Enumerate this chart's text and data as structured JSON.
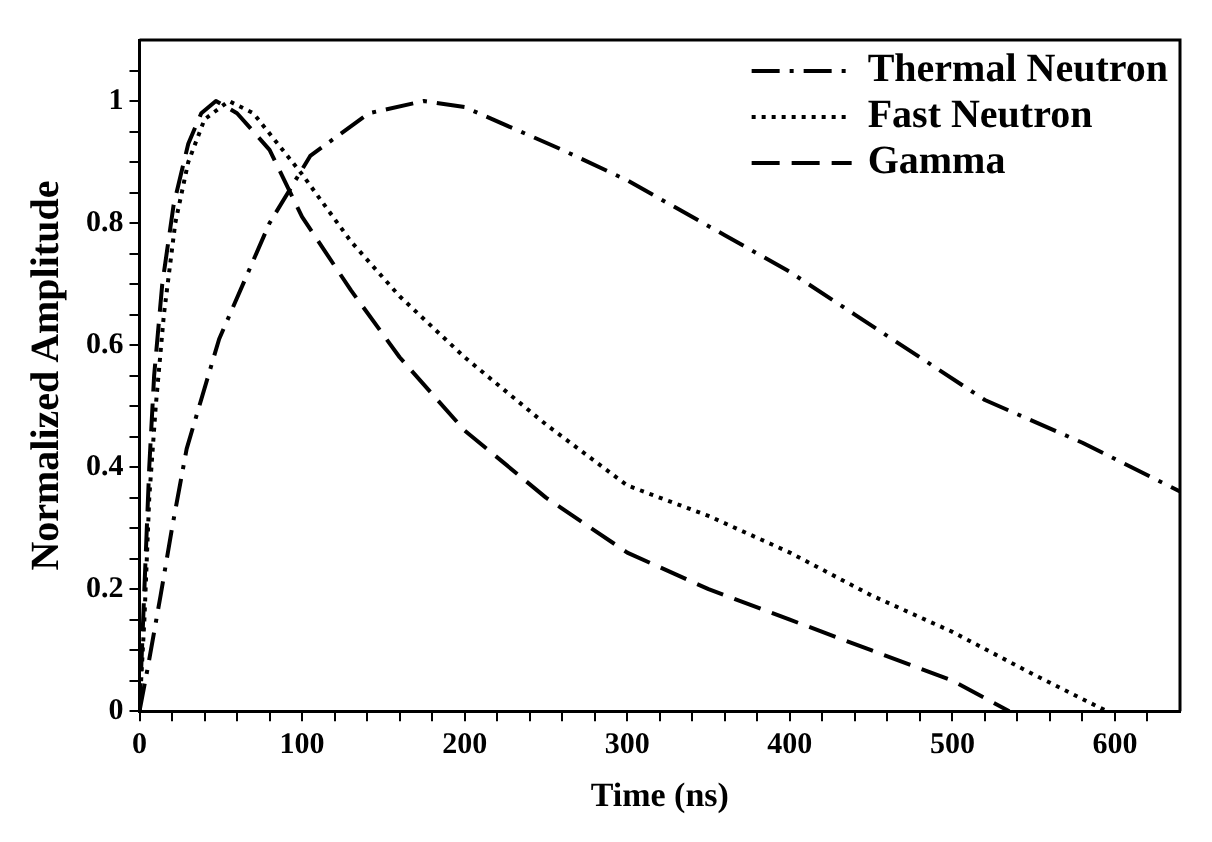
{
  "chart_data": {
    "type": "line",
    "xlabel": "Time (ns)",
    "ylabel": "Normalized Amplitude",
    "xlim": [
      0,
      640
    ],
    "ylim": [
      0,
      1.1
    ],
    "xticks": [
      0,
      {
        "value": 20,
        "label": null
      },
      {
        "value": 40,
        "label": null
      },
      {
        "value": 60,
        "label": null
      },
      {
        "value": 80,
        "label": null
      },
      100,
      {
        "value": 120,
        "label": null
      },
      {
        "value": 140,
        "label": null
      },
      {
        "value": 160,
        "label": null
      },
      {
        "value": 180,
        "label": null
      },
      200,
      {
        "value": 220,
        "label": null
      },
      {
        "value": 240,
        "label": null
      },
      {
        "value": 260,
        "label": null
      },
      {
        "value": 280,
        "label": null
      },
      300,
      {
        "value": 320,
        "label": null
      },
      {
        "value": 340,
        "label": null
      },
      {
        "value": 360,
        "label": null
      },
      {
        "value": 380,
        "label": null
      },
      400,
      {
        "value": 420,
        "label": null
      },
      {
        "value": 440,
        "label": null
      },
      {
        "value": 460,
        "label": null
      },
      {
        "value": 480,
        "label": null
      },
      500,
      {
        "value": 520,
        "label": null
      },
      {
        "value": 540,
        "label": null
      },
      {
        "value": 560,
        "label": null
      },
      {
        "value": 580,
        "label": null
      },
      600,
      {
        "value": 620,
        "label": null
      }
    ],
    "yticks": [
      0,
      {
        "value": 0.05,
        "label": null
      },
      {
        "value": 0.1,
        "label": null
      },
      {
        "value": 0.15,
        "label": null
      },
      0.2,
      {
        "value": 0.25,
        "label": null
      },
      {
        "value": 0.3,
        "label": null
      },
      {
        "value": 0.35,
        "label": null
      },
      0.4,
      {
        "value": 0.45,
        "label": null
      },
      {
        "value": 0.5,
        "label": null
      },
      {
        "value": 0.55,
        "label": null
      },
      0.6,
      {
        "value": 0.65,
        "label": null
      },
      {
        "value": 0.7,
        "label": null
      },
      {
        "value": 0.75,
        "label": null
      },
      0.8,
      {
        "value": 0.85,
        "label": null
      },
      {
        "value": 0.9,
        "label": null
      },
      {
        "value": 0.95,
        "label": null
      },
      1,
      {
        "value": 1.05,
        "label": null
      }
    ],
    "grid": false,
    "legend": "top right",
    "marker": "none",
    "series": [
      {
        "name": "Thermal Neutron",
        "color": "#000000",
        "line_style": "dashdot",
        "x": [
          0,
          5,
          13,
          20,
          29,
          49,
          80,
          105,
          141,
          175,
          200,
          260,
          300,
          360,
          400,
          440,
          480,
          520,
          580,
          640
        ],
        "values": [
          0,
          0.07,
          0.19,
          0.3,
          0.43,
          0.61,
          0.8,
          0.91,
          0.98,
          1.0,
          0.99,
          0.92,
          0.87,
          0.78,
          0.72,
          0.65,
          0.58,
          0.51,
          0.44,
          0.36
        ]
      },
      {
        "name": "Fast Neutron",
        "color": "#000000",
        "line_style": "dotted",
        "x": [
          0,
          3,
          6,
          10,
          15,
          22,
          30,
          40,
          55,
          70,
          100,
          130,
          160,
          200,
          250,
          300,
          350,
          400,
          450,
          500,
          550,
          595
        ],
        "values": [
          0,
          0.15,
          0.35,
          0.5,
          0.65,
          0.8,
          0.9,
          0.97,
          1.0,
          0.98,
          0.88,
          0.77,
          0.68,
          0.58,
          0.47,
          0.37,
          0.32,
          0.26,
          0.19,
          0.13,
          0.06,
          0
        ]
      },
      {
        "name": "Gamma",
        "color": "#000000",
        "line_style": "dashed",
        "x": [
          0,
          3,
          6,
          9,
          14,
          21,
          30,
          38,
          47,
          60,
          80,
          100,
          130,
          160,
          200,
          250,
          300,
          350,
          400,
          450,
          500,
          535
        ],
        "values": [
          0,
          0.2,
          0.4,
          0.55,
          0.7,
          0.83,
          0.93,
          0.98,
          1.0,
          0.98,
          0.92,
          0.81,
          0.69,
          0.58,
          0.46,
          0.35,
          0.26,
          0.2,
          0.15,
          0.1,
          0.05,
          0
        ]
      }
    ]
  }
}
